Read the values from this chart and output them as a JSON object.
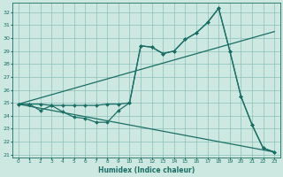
{
  "xlabel": "Humidex (Indice chaleur)",
  "background_color": "#cce8e0",
  "grid_color": "#8bbfb8",
  "line_color": "#1a6e65",
  "xlim": [
    -0.5,
    23.5
  ],
  "ylim": [
    20.8,
    32.7
  ],
  "yticks": [
    21,
    22,
    23,
    24,
    25,
    26,
    27,
    28,
    29,
    30,
    31,
    32
  ],
  "xticks": [
    0,
    1,
    2,
    3,
    4,
    5,
    6,
    7,
    8,
    9,
    10,
    11,
    12,
    13,
    14,
    15,
    16,
    17,
    18,
    19,
    20,
    21,
    22,
    23
  ],
  "series": [
    {
      "x": [
        0,
        23
      ],
      "y": [
        24.9,
        30.5
      ],
      "linestyle": "-",
      "marker": null,
      "linewidth": 0.9
    },
    {
      "x": [
        0,
        23
      ],
      "y": [
        24.9,
        21.2
      ],
      "linestyle": "-",
      "marker": null,
      "linewidth": 0.9
    },
    {
      "x": [
        0,
        1,
        2,
        3,
        4,
        5,
        6,
        7,
        8,
        9,
        10,
        11,
        12,
        13,
        14,
        15,
        16,
        17,
        18,
        19,
        20,
        21,
        22,
        23
      ],
      "y": [
        24.9,
        24.9,
        24.4,
        24.8,
        24.3,
        23.9,
        23.8,
        23.5,
        23.5,
        24.4,
        25.0,
        29.4,
        29.3,
        28.8,
        29.0,
        29.9,
        30.4,
        31.2,
        32.3,
        29.0,
        25.5,
        23.3,
        21.5,
        21.2
      ],
      "linestyle": "-",
      "marker": "D",
      "linewidth": 0.9
    },
    {
      "x": [
        0,
        1,
        2,
        3,
        4,
        5,
        6,
        7,
        8,
        9,
        10,
        11,
        12,
        13,
        14,
        15,
        16,
        17,
        18,
        19,
        20,
        21,
        22,
        23
      ],
      "y": [
        24.9,
        24.9,
        24.9,
        24.8,
        24.8,
        24.8,
        24.8,
        24.8,
        24.9,
        24.9,
        25.0,
        29.4,
        29.3,
        28.8,
        29.0,
        29.9,
        30.4,
        31.2,
        32.3,
        29.0,
        25.5,
        23.3,
        21.5,
        21.2
      ],
      "linestyle": "-",
      "marker": "D",
      "linewidth": 0.9
    }
  ]
}
